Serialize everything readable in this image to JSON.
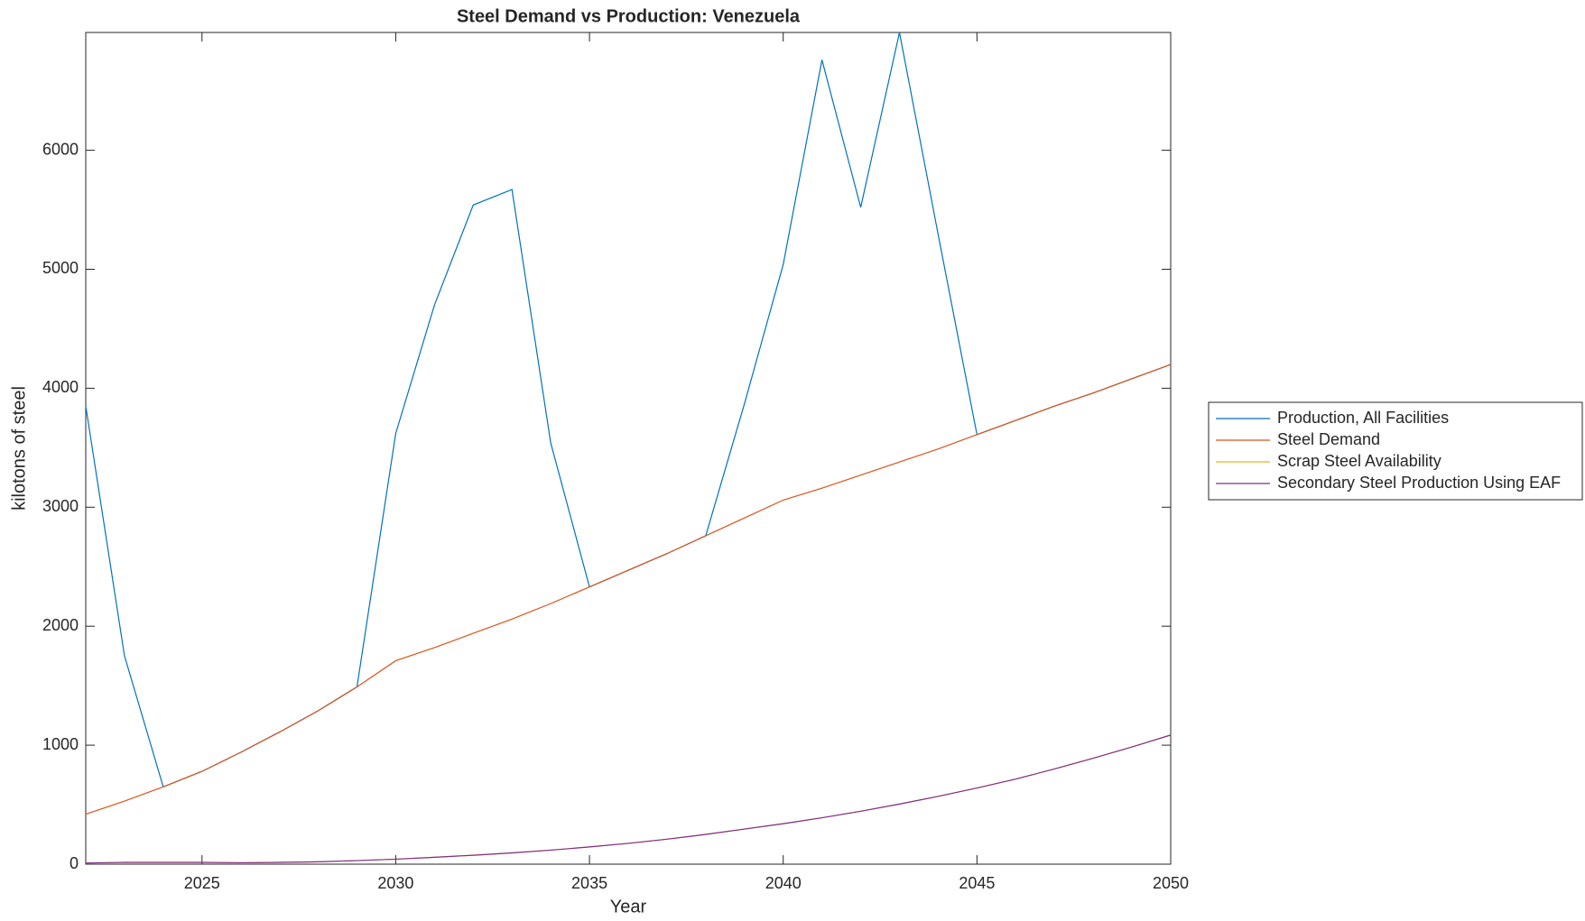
{
  "chart_data": {
    "type": "line",
    "title": "Steel Demand vs Production: Venezuela",
    "x_label": "Year",
    "y_label": "kilotons of steel",
    "x": [
      2022,
      2023,
      2024,
      2025,
      2026,
      2027,
      2028,
      2029,
      2030,
      2031,
      2032,
      2033,
      2034,
      2035,
      2036,
      2037,
      2038,
      2039,
      2040,
      2041,
      2042,
      2043,
      2044,
      2045,
      2046,
      2047,
      2048,
      2049,
      2050
    ],
    "series": [
      {
        "name": "Production, All Facilities",
        "color": "#0072BD",
        "values": [
          3850,
          1750,
          650,
          780,
          940,
          1110,
          1290,
          1490,
          3620,
          4700,
          5540,
          5670,
          3540,
          2330,
          2470,
          2610,
          2760,
          3870,
          5040,
          6760,
          5520,
          6990,
          5290,
          3610,
          3730,
          3850,
          3960,
          4080,
          4200
        ]
      },
      {
        "name": "Steel Demand",
        "color": "#D95319",
        "values": [
          420,
          530,
          650,
          780,
          940,
          1110,
          1290,
          1490,
          1710,
          1820,
          1940,
          2060,
          2190,
          2330,
          2470,
          2610,
          2760,
          2910,
          3060,
          3160,
          3270,
          3380,
          3490,
          3610,
          3730,
          3850,
          3960,
          4080,
          4200
        ]
      },
      {
        "name": "Scrap Steel Availability",
        "color": "#EDB120",
        "values": [
          10,
          15,
          15,
          15,
          12,
          15,
          20,
          30,
          42,
          58,
          75,
          95,
          118,
          145,
          175,
          210,
          250,
          295,
          340,
          390,
          445,
          505,
          570,
          640,
          715,
          800,
          890,
          985,
          1085
        ]
      },
      {
        "name": "Secondary Steel Production Using EAF",
        "color": "#7E2F8E",
        "values": [
          10,
          15,
          15,
          15,
          12,
          15,
          20,
          30,
          42,
          58,
          75,
          95,
          118,
          145,
          175,
          210,
          250,
          295,
          340,
          390,
          445,
          505,
          570,
          640,
          715,
          800,
          890,
          985,
          1085
        ]
      }
    ],
    "xlim": [
      2022,
      2050
    ],
    "xticks": [
      2025,
      2030,
      2035,
      2040,
      2045,
      2050
    ],
    "ylim": [
      0,
      6990
    ],
    "yticks": [
      0,
      1000,
      2000,
      3000,
      4000,
      5000,
      6000
    ],
    "grid": false,
    "legend": "outside-right"
  }
}
